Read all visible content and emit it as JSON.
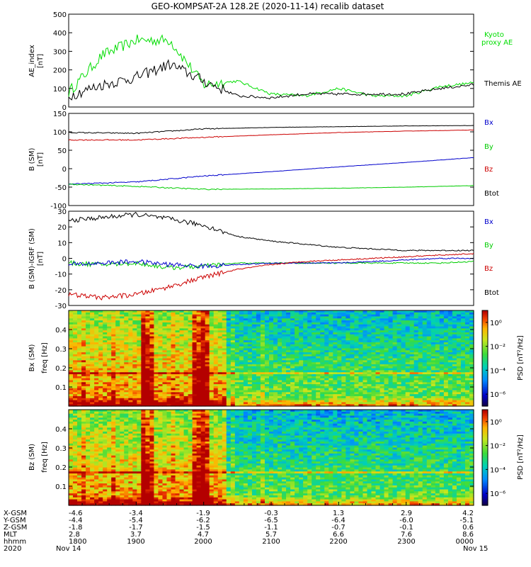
{
  "title": "GEO-KOMPSAT-2A 128.2E (2020-11-14) recalib dataset",
  "panels": {
    "ae": {
      "ylabel_1": "AE_index",
      "ylabel_2": "[nT]",
      "yticks": [
        "500",
        "400",
        "300",
        "200",
        "100",
        "0"
      ],
      "legend": {
        "kyoto_1": "Kyoto",
        "kyoto_2": "proxy AE",
        "themis": "Themis AE"
      },
      "colors": {
        "kyoto": "#00dd00",
        "themis": "#000000"
      }
    },
    "b": {
      "ylabel_1": "B (SM)",
      "ylabel_2": "[nT]",
      "yticks": [
        "150",
        "100",
        "50",
        "0",
        "-50",
        "-100"
      ],
      "legend": [
        "Bx",
        "By",
        "Bz",
        "Btot"
      ]
    },
    "dbgrf": {
      "ylabel_1": "B (SM)-IGRF (SM)",
      "ylabel_2": "[nT]",
      "yticks": [
        "30",
        "20",
        "10",
        "0",
        "-10",
        "-20",
        "-30"
      ],
      "legend": [
        "Bx",
        "By",
        "Bz",
        "Btot"
      ]
    },
    "bx_spec": {
      "ylabel_1": "Bx (SM)",
      "ylabel_2": "freq [Hz]",
      "yticks": [
        "0.4",
        "0.3",
        "0.2",
        "0.1"
      ],
      "colorbar_label": "PSD [nT²/Hz]",
      "colorbar_ticks": [
        "10⁰",
        "10⁻²",
        "10⁻⁴",
        "10⁻⁶"
      ]
    },
    "bz_spec": {
      "ylabel_1": "Bz (SM)",
      "ylabel_2": "freq [Hz]",
      "yticks": [
        "0.4",
        "0.3",
        "0.2",
        "0.1"
      ],
      "colorbar_label": "PSD [nT²/Hz]",
      "colorbar_ticks": [
        "10⁰",
        "10⁻²",
        "10⁻⁴",
        "10⁻⁶"
      ]
    }
  },
  "component_colors": {
    "Bx": "#0000cc",
    "By": "#00cc00",
    "Bz": "#cc0000",
    "Btot": "#000000"
  },
  "footer": {
    "rows": [
      {
        "label": "X-GSM",
        "values": [
          "-4.6",
          "-3.4",
          "-1.9",
          "-0.3",
          "1.3",
          "2.9",
          "4.2"
        ]
      },
      {
        "label": "Y-GSM",
        "values": [
          "-4.4",
          "-5.4",
          "-6.2",
          "-6.5",
          "-6.4",
          "-6.0",
          "-5.1"
        ]
      },
      {
        "label": "Z-GSM",
        "values": [
          "-1.8",
          "-1.7",
          "-1.5",
          "-1.1",
          "-0.7",
          "-0.1",
          "0.6"
        ]
      },
      {
        "label": "MLT",
        "values": [
          "2.8",
          "3.7",
          "4.7",
          "5.7",
          "6.6",
          "7.6",
          "8.6"
        ]
      },
      {
        "label": "hhmm",
        "values": [
          "1800",
          "1900",
          "2000",
          "2100",
          "2200",
          "2300",
          "0000"
        ]
      }
    ],
    "year": "2020",
    "date_start": "Nov 14",
    "date_end": "Nov 15"
  },
  "chart_data": [
    {
      "type": "line",
      "x_hours": [
        18.0,
        18.5,
        19.0,
        19.5,
        20.0,
        20.5,
        21.0,
        21.5,
        22.0,
        22.5,
        23.0,
        23.5,
        24.0
      ],
      "series": [
        {
          "name": "Kyoto proxy AE",
          "values": [
            80,
            280,
            360,
            360,
            120,
            140,
            70,
            60,
            100,
            60,
            60,
            110,
            130
          ]
        },
        {
          "name": "Themis AE",
          "values": [
            60,
            120,
            160,
            230,
            140,
            60,
            50,
            70,
            70,
            70,
            70,
            100,
            120
          ]
        }
      ],
      "ylabel": "AE_index [nT]",
      "ylim": [
        0,
        500
      ]
    },
    {
      "type": "line",
      "x_hours": [
        18.0,
        19.0,
        20.0,
        21.0,
        22.0,
        23.0,
        24.0
      ],
      "series": [
        {
          "name": "Btot",
          "values": [
            98,
            96,
            108,
            112,
            114,
            116,
            117
          ]
        },
        {
          "name": "Bz",
          "values": [
            78,
            78,
            85,
            92,
            98,
            102,
            105
          ]
        },
        {
          "name": "Bx",
          "values": [
            -42,
            -36,
            -20,
            -8,
            5,
            17,
            30
          ]
        },
        {
          "name": "By",
          "values": [
            -42,
            -48,
            -56,
            -55,
            -53,
            -50,
            -46
          ]
        }
      ],
      "ylabel": "B (SM) [nT]",
      "ylim": [
        -100,
        150
      ]
    },
    {
      "type": "line",
      "x_hours": [
        18.0,
        18.5,
        19.0,
        19.5,
        20.0,
        20.5,
        21.0,
        21.5,
        22.0,
        22.5,
        23.0,
        23.5,
        24.0
      ],
      "series": [
        {
          "name": "Btot",
          "values": [
            24,
            26,
            28,
            25,
            21,
            14,
            11,
            9,
            7,
            6,
            5,
            5,
            5
          ]
        },
        {
          "name": "By",
          "values": [
            -3,
            -4,
            -3,
            -6,
            -5,
            -3,
            -3,
            -3,
            -3,
            -3,
            -3,
            -3,
            -2
          ]
        },
        {
          "name": "Bx",
          "values": [
            -4,
            -3,
            -2,
            -4,
            -5,
            -4,
            -3,
            -3,
            -3,
            -2,
            -1,
            0,
            0
          ]
        },
        {
          "name": "Bz",
          "values": [
            -23,
            -25,
            -23,
            -18,
            -12,
            -7,
            -4,
            -2,
            -1,
            0,
            1,
            2,
            3
          ]
        }
      ],
      "ylabel": "B (SM)-IGRF (SM) [nT]",
      "ylim": [
        -30,
        30
      ]
    },
    {
      "type": "heatmap",
      "name": "Bx (SM)",
      "ylabel": "freq [Hz]",
      "ylim": [
        0,
        0.5
      ],
      "colorbar": "log10 PSD [nT²/Hz]",
      "clim_log10": [
        -7,
        1
      ]
    },
    {
      "type": "heatmap",
      "name": "Bz (SM)",
      "ylabel": "freq [Hz]",
      "ylim": [
        0,
        0.5
      ],
      "colorbar": "log10 PSD [nT²/Hz]",
      "clim_log10": [
        -7,
        1
      ]
    }
  ]
}
